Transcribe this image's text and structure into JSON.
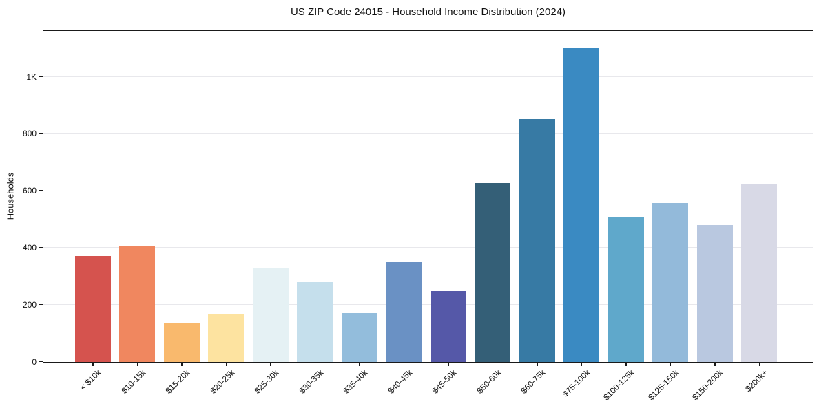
{
  "chart_data": {
    "type": "bar",
    "title": "US ZIP Code 24015 - Household Income Distribution (2024)",
    "xlabel": "",
    "ylabel": "Households",
    "categories": [
      "< $10k",
      "$10-15k",
      "$15-20k",
      "$20-25k",
      "$25-30k",
      "$30-35k",
      "$35-40k",
      "$40-45k",
      "$45-50k",
      "$50-60k",
      "$60-75k",
      "$75-100k",
      "$100-125k",
      "$125-150k",
      "$150-200k",
      "$200k+"
    ],
    "values": [
      372,
      406,
      135,
      166,
      329,
      281,
      172,
      351,
      250,
      629,
      853,
      1102,
      507,
      559,
      481,
      624
    ],
    "bar_colors": [
      "#d5534e",
      "#f0875f",
      "#f9b96d",
      "#fde3a0",
      "#e5f1f4",
      "#c5dfec",
      "#93bddc",
      "#6a91c4",
      "#5558a8",
      "#345f77",
      "#377aa4",
      "#3a8ac2",
      "#5fa8cb",
      "#93bada",
      "#b9c8e0",
      "#d8d9e6"
    ],
    "ylim": [
      0,
      1160
    ],
    "yticks": [
      {
        "value": 0,
        "label": "0"
      },
      {
        "value": 200,
        "label": "200"
      },
      {
        "value": 400,
        "label": "400"
      },
      {
        "value": 600,
        "label": "600"
      },
      {
        "value": 800,
        "label": "800"
      },
      {
        "value": 1000,
        "label": "1K"
      }
    ],
    "grid": "horizontal",
    "legend": "none",
    "background_color": "#ffffff",
    "spine_color": "#1a1a1a",
    "gridline_color": "#e8e8ec"
  }
}
